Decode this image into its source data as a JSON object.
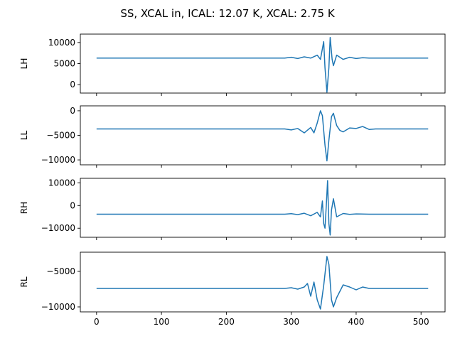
{
  "figure": {
    "suptitle": "SS, XCAL in, ICAL: 12.07 K, XCAL: 2.75 K",
    "line_color": "#1f77b4"
  },
  "chart_data": [
    {
      "type": "line",
      "ylabel": "LH",
      "xlim": [
        -25,
        537
      ],
      "ylim": [
        -2000,
        12000
      ],
      "yticks": [
        0,
        5000,
        10000
      ],
      "ytick_labels": [
        "0",
        "5000",
        "10000"
      ],
      "xticks": [
        0,
        100,
        200,
        300,
        400,
        500
      ],
      "show_xtick_labels": false,
      "series": [
        {
          "x": [
            0,
            100,
            200,
            290,
            300,
            310,
            320,
            330,
            340,
            345,
            350,
            352,
            355,
            358,
            360,
            363,
            365,
            370,
            380,
            390,
            400,
            410,
            420,
            430,
            450,
            500,
            511
          ],
          "y": [
            6300,
            6300,
            6300,
            6300,
            6500,
            6200,
            6600,
            6300,
            7000,
            6000,
            10200,
            4000,
            -1800,
            4000,
            11200,
            6000,
            4500,
            7000,
            6000,
            6500,
            6200,
            6400,
            6300,
            6300,
            6300,
            6300,
            6300
          ]
        }
      ]
    },
    {
      "type": "line",
      "ylabel": "LL",
      "xlim": [
        -25,
        537
      ],
      "ylim": [
        -11000,
        1000
      ],
      "yticks": [
        -10000,
        -5000,
        0
      ],
      "ytick_labels": [
        "−10000",
        "−5000",
        "0"
      ],
      "xticks": [
        0,
        100,
        200,
        300,
        400,
        500
      ],
      "show_xtick_labels": false,
      "series": [
        {
          "x": [
            0,
            100,
            200,
            290,
            300,
            310,
            320,
            330,
            335,
            340,
            345,
            348,
            352,
            355,
            358,
            362,
            365,
            370,
            375,
            380,
            390,
            400,
            410,
            420,
            430,
            450,
            500,
            511
          ],
          "y": [
            -3700,
            -3700,
            -3700,
            -3700,
            -3900,
            -3600,
            -4500,
            -3400,
            -4500,
            -2500,
            0,
            -1000,
            -7000,
            -10200,
            -6000,
            -1200,
            -500,
            -3000,
            -4000,
            -4300,
            -3500,
            -3600,
            -3200,
            -3800,
            -3700,
            -3700,
            -3700,
            -3700
          ]
        }
      ]
    },
    {
      "type": "line",
      "ylabel": "RH",
      "xlim": [
        -25,
        537
      ],
      "ylim": [
        -14000,
        12000
      ],
      "yticks": [
        -10000,
        0,
        10000
      ],
      "ytick_labels": [
        "−10000",
        "0",
        "10000"
      ],
      "xticks": [
        0,
        100,
        200,
        300,
        400,
        500
      ],
      "show_xtick_labels": false,
      "series": [
        {
          "x": [
            0,
            100,
            200,
            290,
            300,
            310,
            320,
            330,
            340,
            345,
            348,
            350,
            352,
            354,
            356,
            358,
            360,
            362,
            365,
            370,
            380,
            390,
            400,
            420,
            450,
            500,
            511
          ],
          "y": [
            -3800,
            -3800,
            -3800,
            -3800,
            -3600,
            -4000,
            -3400,
            -4500,
            -3000,
            -5000,
            2000,
            -8000,
            -10000,
            0,
            11000,
            -8000,
            -13000,
            -2000,
            3000,
            -5000,
            -3500,
            -3900,
            -3700,
            -3800,
            -3800,
            -3800,
            -3800
          ]
        }
      ]
    },
    {
      "type": "line",
      "ylabel": "RL",
      "xlim": [
        -25,
        537
      ],
      "ylim": [
        -10700,
        -2300
      ],
      "yticks": [
        -10000,
        -5000
      ],
      "ytick_labels": [
        "−10000",
        "−5000"
      ],
      "xticks": [
        0,
        100,
        200,
        300,
        400,
        500
      ],
      "xtick_labels": [
        "0",
        "100",
        "200",
        "300",
        "400",
        "500"
      ],
      "show_xtick_labels": true,
      "series": [
        {
          "x": [
            0,
            100,
            200,
            290,
            300,
            310,
            320,
            325,
            330,
            335,
            340,
            345,
            350,
            355,
            358,
            362,
            365,
            370,
            380,
            390,
            400,
            410,
            420,
            430,
            450,
            500,
            511
          ],
          "y": [
            -7400,
            -7400,
            -7400,
            -7400,
            -7300,
            -7500,
            -7200,
            -6700,
            -8500,
            -6500,
            -9000,
            -10300,
            -7000,
            -2900,
            -4000,
            -9000,
            -10000,
            -8700,
            -6900,
            -7200,
            -7600,
            -7200,
            -7400,
            -7400,
            -7400,
            -7400,
            -7400
          ]
        }
      ]
    }
  ]
}
